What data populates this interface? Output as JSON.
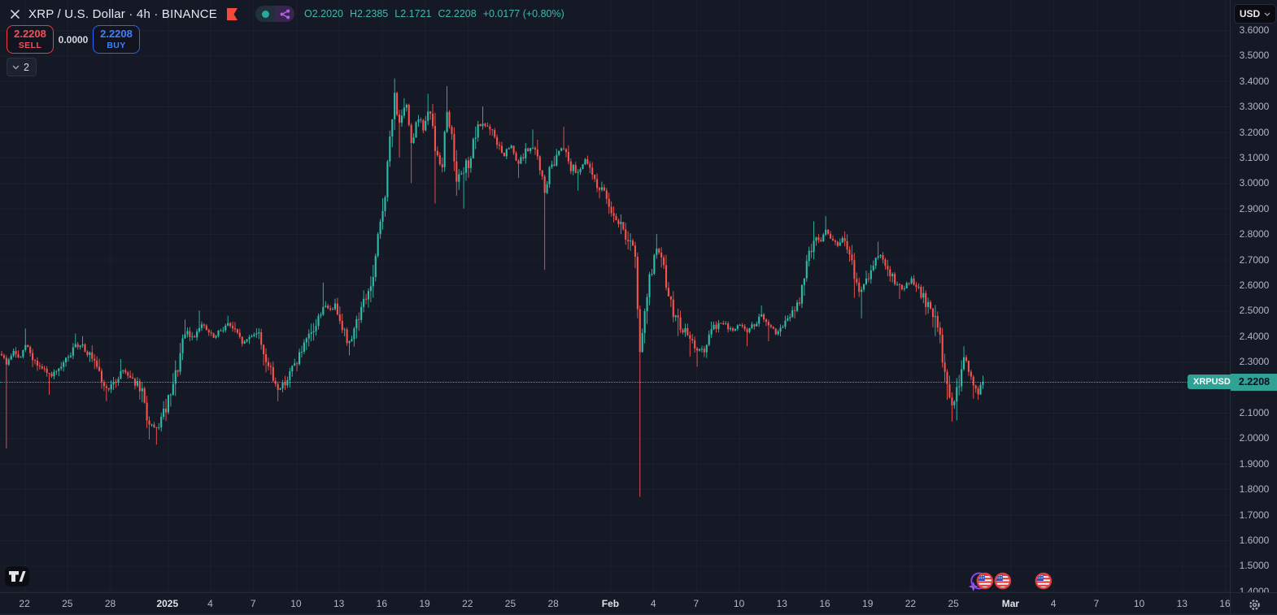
{
  "header": {
    "close_label": "✕",
    "symbol_title": "XRP / U.S. Dollar · 4h · BINANCE",
    "ohlc": {
      "open": "O2.2020",
      "high": "H2.2385",
      "low": "L2.1721",
      "close": "C2.2208",
      "change": "+0.0177 (+0.80%)"
    }
  },
  "trade_panel": {
    "sell_price": "2.2208",
    "sell_label": "SELL",
    "spread": "0.0000",
    "buy_price": "2.2208",
    "buy_label": "BUY",
    "interval_count": "2"
  },
  "price_scale": {
    "currency": "USD",
    "min": 1.4,
    "max": 3.6,
    "step": 0.1,
    "decimals": 4,
    "last_price_label": "2.2208",
    "symbol_tag": "XRPUSD"
  },
  "time_scale": {
    "ticks": [
      {
        "label": "22",
        "d": 1.6
      },
      {
        "label": "25",
        "d": 4.6
      },
      {
        "label": "28",
        "d": 7.6
      },
      {
        "label": "2025",
        "d": 11.6,
        "major": true
      },
      {
        "label": "4",
        "d": 14.6
      },
      {
        "label": "7",
        "d": 17.6
      },
      {
        "label": "10",
        "d": 20.6
      },
      {
        "label": "13",
        "d": 23.6
      },
      {
        "label": "16",
        "d": 26.6
      },
      {
        "label": "19",
        "d": 29.6
      },
      {
        "label": "22",
        "d": 32.6
      },
      {
        "label": "25",
        "d": 35.6
      },
      {
        "label": "28",
        "d": 38.6
      },
      {
        "label": "Feb",
        "d": 42.6,
        "major": true
      },
      {
        "label": "4",
        "d": 45.6
      },
      {
        "label": "7",
        "d": 48.6
      },
      {
        "label": "10",
        "d": 51.6
      },
      {
        "label": "13",
        "d": 54.6
      },
      {
        "label": "16",
        "d": 57.6
      },
      {
        "label": "19",
        "d": 60.6
      },
      {
        "label": "22",
        "d": 63.6
      },
      {
        "label": "25",
        "d": 66.6
      },
      {
        "label": "Mar",
        "d": 70.6,
        "major": true
      },
      {
        "label": "4",
        "d": 73.6
      },
      {
        "label": "7",
        "d": 76.6
      },
      {
        "label": "10",
        "d": 79.6
      },
      {
        "label": "13",
        "d": 82.6
      },
      {
        "label": "16",
        "d": 85.6
      }
    ]
  },
  "colors": {
    "background": "#151926",
    "up": "#2dbda9",
    "down": "#f6534e",
    "accent_teal": "#2fa195",
    "sell_red": "#f23645",
    "buy_blue": "#2962ff",
    "axis_text": "#b2b7c3",
    "grid": "rgba(150,160,185,0.06)"
  },
  "chart_data": {
    "type": "candlestick",
    "symbol": "XRPUSD",
    "exchange": "BINANCE",
    "interval": "4h",
    "title": "XRP / U.S. Dollar · 4h · BINANCE",
    "last_close": 2.2208,
    "ohlc_current": {
      "open": 2.202,
      "high": 2.2385,
      "low": 2.1721,
      "close": 2.2208,
      "change": 0.0177,
      "change_pct": 0.8
    },
    "y_range": [
      1.4,
      3.6
    ],
    "x_range_days": [
      "Dec 20",
      "Mar 16"
    ],
    "grid": "faint",
    "candles_per_day": 6,
    "price_path_anchors": [
      [
        0.0,
        2.33
      ],
      [
        0.35,
        2.29,
        1.96
      ],
      [
        0.8,
        2.34
      ],
      [
        1.3,
        2.31
      ],
      [
        1.7,
        2.37,
        null,
        2.43
      ],
      [
        2.2,
        2.31
      ],
      [
        2.8,
        2.27
      ],
      [
        3.4,
        2.245,
        2.17
      ],
      [
        4.0,
        2.26
      ],
      [
        4.6,
        2.31
      ],
      [
        5.1,
        2.355,
        null,
        2.41
      ],
      [
        5.6,
        2.37,
        null,
        2.4
      ],
      [
        6.1,
        2.33
      ],
      [
        6.7,
        2.26
      ],
      [
        7.3,
        2.19,
        2.145
      ],
      [
        7.9,
        2.21
      ],
      [
        8.4,
        2.27,
        null,
        2.31
      ],
      [
        8.9,
        2.25
      ],
      [
        9.4,
        2.215
      ],
      [
        9.9,
        2.16
      ],
      [
        10.3,
        2.05,
        1.995
      ],
      [
        10.8,
        2.03,
        1.975
      ],
      [
        11.3,
        2.09
      ],
      [
        11.9,
        2.17
      ],
      [
        12.4,
        2.3
      ],
      [
        12.9,
        2.415,
        null,
        2.465
      ],
      [
        13.4,
        2.39
      ],
      [
        13.9,
        2.45,
        null,
        2.5
      ],
      [
        14.4,
        2.42
      ],
      [
        14.9,
        2.39
      ],
      [
        15.4,
        2.43
      ],
      [
        15.9,
        2.45,
        null,
        2.48
      ],
      [
        16.4,
        2.41
      ],
      [
        16.9,
        2.37
      ],
      [
        17.4,
        2.4
      ],
      [
        17.9,
        2.42
      ],
      [
        18.4,
        2.33
      ],
      [
        18.9,
        2.24
      ],
      [
        19.4,
        2.19,
        2.145
      ],
      [
        20.0,
        2.235
      ],
      [
        20.6,
        2.3
      ],
      [
        21.3,
        2.37
      ],
      [
        21.9,
        2.43
      ],
      [
        22.5,
        2.52,
        null,
        2.61
      ],
      [
        22.9,
        2.5
      ],
      [
        23.3,
        2.52
      ],
      [
        23.7,
        2.48
      ],
      [
        24.25,
        2.36,
        2.325
      ],
      [
        24.9,
        2.47
      ],
      [
        25.6,
        2.565
      ],
      [
        26.0,
        2.62
      ],
      [
        26.4,
        2.8
      ],
      [
        26.8,
        2.95
      ],
      [
        27.2,
        3.18
      ],
      [
        27.5,
        3.34,
        null,
        3.41
      ],
      [
        27.9,
        3.22,
        3.1
      ],
      [
        28.3,
        3.31
      ],
      [
        28.7,
        3.15,
        3.0
      ],
      [
        29.1,
        3.27
      ],
      [
        29.5,
        3.21
      ],
      [
        29.9,
        3.29,
        null,
        3.35
      ],
      [
        30.4,
        3.12,
        2.92
      ],
      [
        30.8,
        3.05
      ],
      [
        31.1,
        3.29,
        null,
        3.38
      ],
      [
        31.5,
        3.18
      ],
      [
        31.9,
        3.01,
        2.95
      ],
      [
        32.3,
        3.04,
        2.9
      ],
      [
        32.8,
        3.1
      ],
      [
        33.2,
        3.19
      ],
      [
        33.6,
        3.24,
        null,
        3.3
      ],
      [
        34.1,
        3.21
      ],
      [
        34.6,
        3.17
      ],
      [
        35.1,
        3.1
      ],
      [
        35.6,
        3.15
      ],
      [
        36.1,
        3.07,
        3.02
      ],
      [
        36.6,
        3.12
      ],
      [
        37.1,
        3.14,
        null,
        3.21
      ],
      [
        37.6,
        3.09
      ],
      [
        38.0,
        2.96,
        2.66
      ],
      [
        38.4,
        3.06
      ],
      [
        38.9,
        3.12
      ],
      [
        39.3,
        3.15,
        null,
        3.22
      ],
      [
        39.8,
        3.07
      ],
      [
        40.3,
        3.04,
        2.97
      ],
      [
        40.8,
        3.09
      ],
      [
        41.3,
        3.04
      ],
      [
        41.8,
        2.98,
        2.94
      ],
      [
        42.3,
        2.95
      ],
      [
        42.8,
        2.88
      ],
      [
        43.3,
        2.84,
        2.8
      ],
      [
        43.8,
        2.78
      ],
      [
        44.3,
        2.72,
        2.68
      ],
      [
        44.7,
        2.3,
        1.77
      ],
      [
        45.0,
        2.52
      ],
      [
        45.4,
        2.64
      ],
      [
        45.8,
        2.74,
        null,
        2.8
      ],
      [
        46.2,
        2.69
      ],
      [
        46.6,
        2.58
      ],
      [
        47.0,
        2.49
      ],
      [
        47.4,
        2.45,
        2.4
      ],
      [
        47.8,
        2.42
      ],
      [
        48.2,
        2.38,
        2.32
      ],
      [
        48.7,
        2.35,
        2.28
      ],
      [
        49.2,
        2.34
      ],
      [
        49.7,
        2.42
      ],
      [
        50.2,
        2.455
      ],
      [
        50.7,
        2.44
      ],
      [
        51.2,
        2.42
      ],
      [
        51.7,
        2.45
      ],
      [
        52.2,
        2.415,
        2.36
      ],
      [
        52.7,
        2.45
      ],
      [
        53.2,
        2.48,
        null,
        2.52
      ],
      [
        53.7,
        2.435,
        2.38
      ],
      [
        54.2,
        2.41
      ],
      [
        54.7,
        2.44
      ],
      [
        55.2,
        2.48
      ],
      [
        55.7,
        2.52
      ],
      [
        56.1,
        2.6
      ],
      [
        56.5,
        2.72
      ],
      [
        56.9,
        2.8,
        null,
        2.85
      ],
      [
        57.3,
        2.77
      ],
      [
        57.7,
        2.82,
        null,
        2.87
      ],
      [
        58.1,
        2.78
      ],
      [
        58.5,
        2.75
      ],
      [
        58.9,
        2.79
      ],
      [
        59.3,
        2.72
      ],
      [
        59.7,
        2.62,
        2.55
      ],
      [
        60.1,
        2.57,
        2.47
      ],
      [
        60.5,
        2.62
      ],
      [
        60.9,
        2.67
      ],
      [
        61.3,
        2.72,
        null,
        2.77
      ],
      [
        61.7,
        2.7
      ],
      [
        62.1,
        2.66
      ],
      [
        62.5,
        2.62
      ],
      [
        62.9,
        2.585,
        2.545
      ],
      [
        63.3,
        2.6
      ],
      [
        63.7,
        2.62
      ],
      [
        64.1,
        2.58
      ],
      [
        64.5,
        2.55
      ],
      [
        64.9,
        2.51
      ],
      [
        65.3,
        2.46,
        2.4
      ],
      [
        65.7,
        2.38
      ],
      [
        65.9,
        2.3
      ],
      [
        66.2,
        2.22,
        2.15
      ],
      [
        66.5,
        2.12,
        2.065
      ],
      [
        66.8,
        2.17,
        2.07
      ],
      [
        67.1,
        2.25
      ],
      [
        67.4,
        2.33,
        null,
        2.36
      ],
      [
        67.7,
        2.26
      ],
      [
        68.0,
        2.2,
        2.155
      ],
      [
        68.3,
        2.17,
        2.15
      ],
      [
        68.6,
        2.2208,
        null,
        2.245
      ]
    ],
    "event_markers": [
      {
        "icon": "sparkle",
        "d": 68.0
      },
      {
        "icon": "purple-ring",
        "d": 68.4
      },
      {
        "icon": "us-flag",
        "d": 68.8
      },
      {
        "icon": "us-flag",
        "d": 70.05
      },
      {
        "icon": "us-flag",
        "d": 72.9
      }
    ]
  }
}
